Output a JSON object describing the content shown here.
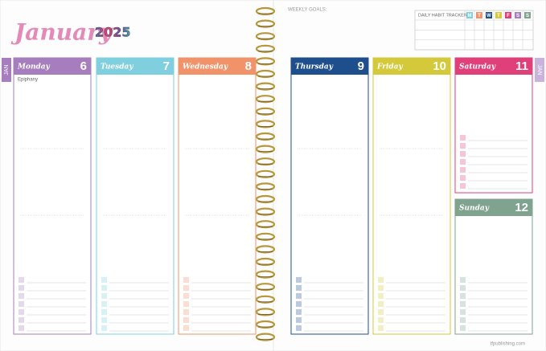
{
  "header": {
    "month": "January",
    "year": "2025",
    "tab_left": "JAN",
    "tab_right": "JAN",
    "weekly_goals": "WEEKLY GOALS:"
  },
  "habit_tracker": {
    "title": "DAILY HABIT TRACKER:",
    "days": [
      {
        "letter": "M",
        "color": "#7fcfdf"
      },
      {
        "letter": "T",
        "color": "#f0936a"
      },
      {
        "letter": "W",
        "color": "#1f4e8c"
      },
      {
        "letter": "T",
        "color": "#d4c93a"
      },
      {
        "letter": "F",
        "color": "#e0407a"
      },
      {
        "letter": "S",
        "color": "#a67dbd"
      },
      {
        "letter": "S",
        "color": "#7fa38f"
      }
    ]
  },
  "days": [
    {
      "name": "Monday",
      "number": 6,
      "color": "#a67dbd",
      "note": "Epiphany"
    },
    {
      "name": "Tuesday",
      "number": 7,
      "color": "#7fcfdf"
    },
    {
      "name": "Wednesday",
      "number": 8,
      "color": "#f0936a"
    },
    {
      "name": "Thursday",
      "number": 9,
      "color": "#1f4e8c"
    },
    {
      "name": "Friday",
      "number": 10,
      "color": "#d4c93a"
    },
    {
      "name": "Saturday",
      "number": 11,
      "color": "#e0407a"
    },
    {
      "name": "Sunday",
      "number": 12,
      "color": "#7fa38f"
    }
  ],
  "footer": "tfpublishing.com"
}
